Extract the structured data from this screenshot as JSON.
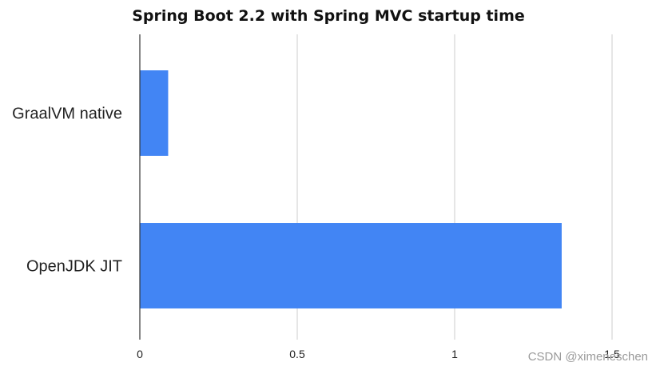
{
  "chart_data": {
    "type": "bar",
    "orientation": "horizontal",
    "title": "Spring Boot 2.2 with Spring MVC startup time",
    "categories": [
      "GraalVM native",
      "OpenJDK JIT"
    ],
    "values": [
      0.09,
      1.34
    ],
    "xlabel": "",
    "ylabel": "",
    "xlim": [
      0,
      1.5
    ],
    "ticks": [
      "0",
      "0.5",
      "1",
      "1.5"
    ],
    "grid": true,
    "legend": "none",
    "bar_color": "#4285f4"
  },
  "watermark": "CSDN @ximeneschen"
}
